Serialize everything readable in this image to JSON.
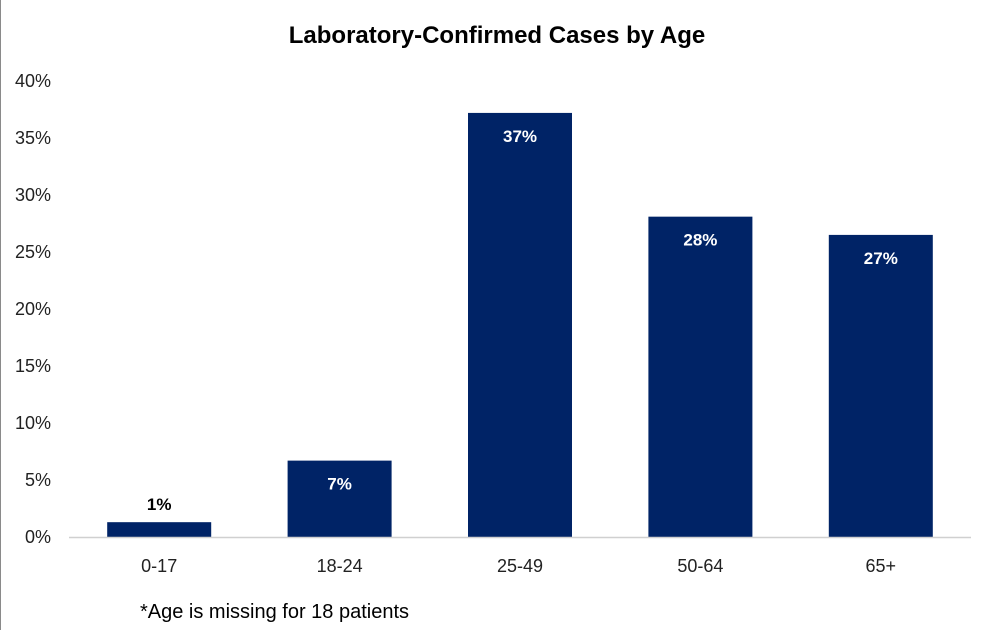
{
  "chart_data": {
    "type": "bar",
    "title": "Laboratory-Confirmed Cases by Age",
    "xlabel": "",
    "ylabel": "",
    "categories": [
      "0-17",
      "18-24",
      "25-49",
      "50-64",
      "65+"
    ],
    "values": [
      1.3,
      6.7,
      37.2,
      28.1,
      26.5
    ],
    "data_labels": [
      "1%",
      "7%",
      "37%",
      "28%",
      "27%"
    ],
    "ylim": [
      0,
      40
    ],
    "y_ticks": [
      0,
      5,
      10,
      15,
      20,
      25,
      30,
      35,
      40
    ],
    "y_tick_labels": [
      "0%",
      "5%",
      "10%",
      "15%",
      "20%",
      "25%",
      "30%",
      "35%",
      "40%"
    ],
    "grid": false,
    "legend": "none",
    "bar_color": "#002366",
    "label_color_inside": "#ffffff",
    "label_color_outside": "#000000",
    "footnote": "*Age is missing for 18 patients"
  }
}
